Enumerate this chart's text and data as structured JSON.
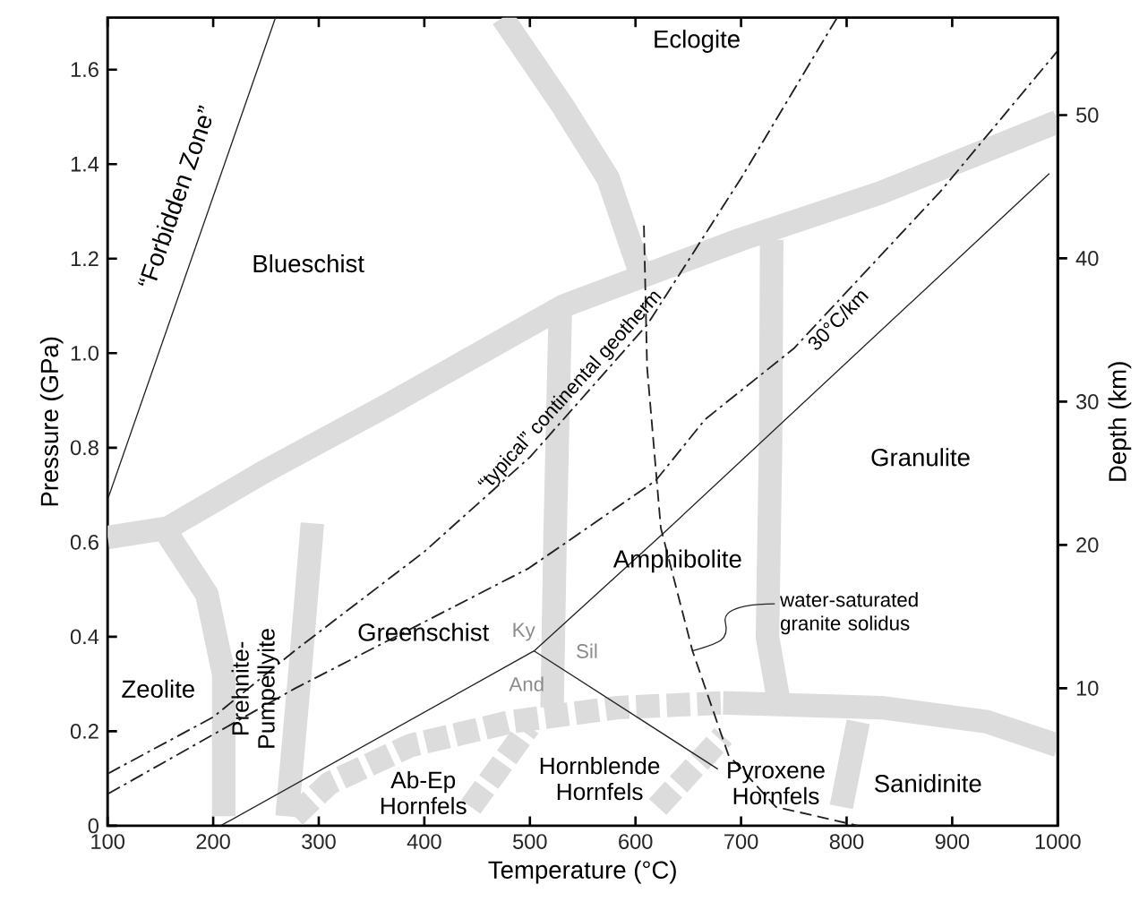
{
  "chart_data": {
    "type": "line",
    "xlabel": "Temperature (°C)",
    "ylabel": "Pressure (GPa)",
    "y2label": "Depth (km)",
    "xlim": [
      100,
      1000
    ],
    "ylim": [
      0,
      1.71
    ],
    "y2lim": [
      0.4,
      56.8
    ],
    "xticks": [
      100,
      200,
      300,
      400,
      500,
      600,
      700,
      800,
      900,
      1000
    ],
    "yticks": [
      0,
      0.2,
      0.4,
      0.6,
      0.8,
      {
        "value": 1,
        "label": "1.0"
      },
      1.2,
      1.4,
      1.6
    ],
    "y2ticks": [
      10,
      20,
      30,
      40,
      50
    ],
    "series": [
      {
        "color": "#dcdcdc",
        "line_style": "solid",
        "x": [
          100,
          157,
          249,
          365,
          532,
          699,
          833,
          1000
        ],
        "values": [
          0.61,
          0.63,
          0.75,
          0.89,
          1.1,
          1.24,
          1.34,
          1.49
        ]
      },
      {
        "color": "#dcdcdc",
        "line_style": "solid",
        "x": [
          474,
          532,
          574,
          603
        ],
        "values": [
          1.71,
          1.52,
          1.37,
          1.18
        ]
      },
      {
        "color": "#dcdcdc",
        "line_style": "solid",
        "x": [
          529,
          524,
          521
        ],
        "values": [
          1.11,
          0.63,
          0.25
        ]
      },
      {
        "color": "#dcdcdc",
        "line_style": "solid",
        "x": [
          729,
          728,
          725,
          736
        ],
        "values": [
          1.24,
          0.81,
          0.4,
          0.26
        ]
      },
      {
        "color": "#dcdcdc",
        "line_style": "solid",
        "x": [
          683,
          833,
          933,
          1000
        ],
        "values": [
          0.26,
          0.25,
          0.22,
          0.17
        ]
      },
      {
        "color": "#dcdcdc",
        "line_style": "dashed",
        "x": [
          277,
          310,
          387,
          482,
          583,
          683
        ],
        "values": [
          0.02,
          0.09,
          0.17,
          0.22,
          0.25,
          0.26
        ]
      },
      {
        "color": "#dcdcdc",
        "line_style": "dashed",
        "x": [
          621,
          683
        ],
        "values": [
          0.04,
          0.19
        ]
      },
      {
        "color": "#dcdcdc",
        "line_style": "dashed",
        "x": [
          444,
          499
        ],
        "values": [
          0.04,
          0.21
        ]
      },
      {
        "color": "#dcdcdc",
        "line_style": "solid",
        "x": [
          795,
          811
        ],
        "values": [
          0.04,
          0.22
        ]
      },
      {
        "color": "#dcdcdc",
        "line_style": "solid",
        "x": [
          153,
          194,
          210,
          210
        ],
        "values": [
          0.63,
          0.49,
          0.32,
          0.02
        ]
      },
      {
        "color": "#dcdcdc",
        "line_style": "solid",
        "x": [
          294,
          282,
          270
        ],
        "values": [
          0.64,
          0.32,
          0.02
        ]
      },
      {
        "color": "#231f20",
        "line_style": "solid",
        "x": [
          100,
          259
        ],
        "values": [
          0.69,
          1.71
        ]
      },
      {
        "color": "#231f20",
        "line_style": "dashdot",
        "x": [
          100,
          200,
          277,
          400,
          500,
          611,
          700,
          791
        ],
        "values": [
          0.11,
          0.23,
          0.37,
          0.58,
          0.78,
          1.06,
          1.37,
          1.71
        ]
      },
      {
        "color": "#231f20",
        "line_style": "dashdot",
        "x": [
          100,
          277,
          499,
          619,
          666,
          750,
          888,
          1000
        ],
        "values": [
          0.067,
          0.29,
          0.545,
          0.73,
          0.86,
          1.01,
          1.34,
          1.64
        ]
      },
      {
        "color": "#231f20",
        "line_style": "solid",
        "x": [
          207,
          504,
          627,
          992
        ],
        "values": [
          0,
          0.37,
          0.62,
          1.38
        ]
      },
      {
        "color": "#231f20",
        "line_style": "solid",
        "x": [
          504,
          678
        ],
        "values": [
          0.37,
          0.12
        ]
      },
      {
        "color": "#231f20",
        "line_style": "dashed",
        "x": [
          608,
          611,
          624,
          654,
          688,
          733,
          811
        ],
        "values": [
          1.27,
          0.97,
          0.63,
          0.37,
          0.15,
          0.04,
          0
        ]
      }
    ],
    "annotations": [
      "“Forbidden Zone”",
      "Blueschist",
      "Eclogite",
      "Granulite",
      "Amphibolite",
      "Greenschist",
      "Zeolite",
      "Prehnite-Pumpellyite",
      "Ky",
      "And",
      "Sil",
      "Ab-Ep Hornfels",
      "Hornblende Hornfels",
      "Pyroxene Hornfels",
      "Sanidinite",
      {
        "text": "“typical” continental geotherm",
        "x": 549,
        "y": 0.9
      },
      {
        "text": "30°C/km",
        "x": 783,
        "y": 1.09
      },
      {
        "text": "water-saturated granite solidus",
        "x": 654,
        "y": 0.37
      }
    ]
  }
}
